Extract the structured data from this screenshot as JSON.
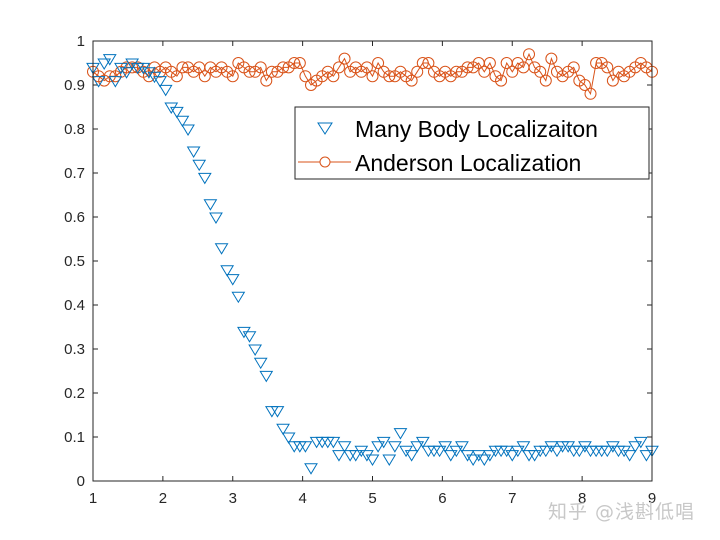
{
  "chart_data": {
    "type": "scatter",
    "title": "",
    "xlabel": "",
    "ylabel": "",
    "xlim": [
      1,
      9
    ],
    "ylim": [
      0,
      1
    ],
    "xticks": [
      1,
      2,
      3,
      4,
      5,
      6,
      7,
      8,
      9
    ],
    "yticks": [
      0,
      0.1,
      0.2,
      0.3,
      0.4,
      0.5,
      0.6,
      0.7,
      0.8,
      0.9,
      1
    ],
    "ytick_labels": [
      "0",
      "0.1",
      "0.2",
      "0.3",
      "0.4",
      "0.5",
      "0.6",
      "0.7",
      "0.8",
      "0.9",
      "1"
    ],
    "grid": false,
    "legend_position": "upper right (inside)",
    "series": [
      {
        "name": "Many Body Localizaiton",
        "marker": "triangle-down",
        "line": "none",
        "color": "#0072BD",
        "x": [
          1.0,
          1.08,
          1.16,
          1.24,
          1.32,
          1.4,
          1.48,
          1.56,
          1.64,
          1.72,
          1.8,
          1.88,
          1.96,
          2.04,
          2.12,
          2.2,
          2.28,
          2.36,
          2.44,
          2.52,
          2.6,
          2.68,
          2.76,
          2.84,
          2.92,
          3.0,
          3.08,
          3.16,
          3.24,
          3.32,
          3.4,
          3.48,
          3.56,
          3.64,
          3.72,
          3.8,
          3.88,
          3.96,
          4.04,
          4.12,
          4.2,
          4.28,
          4.36,
          4.44,
          4.52,
          4.6,
          4.68,
          4.76,
          4.84,
          4.92,
          5.0,
          5.08,
          5.16,
          5.24,
          5.32,
          5.4,
          5.48,
          5.56,
          5.64,
          5.72,
          5.8,
          5.88,
          5.96,
          6.04,
          6.12,
          6.2,
          6.28,
          6.36,
          6.44,
          6.52,
          6.6,
          6.68,
          6.76,
          6.84,
          6.92,
          7.0,
          7.08,
          7.16,
          7.24,
          7.32,
          7.4,
          7.48,
          7.56,
          7.64,
          7.72,
          7.8,
          7.88,
          7.96,
          8.04,
          8.12,
          8.2,
          8.28,
          8.36,
          8.44,
          8.52,
          8.6,
          8.68,
          8.76,
          8.84,
          8.92,
          9.0
        ],
        "y": [
          0.94,
          0.91,
          0.95,
          0.96,
          0.91,
          0.94,
          0.93,
          0.95,
          0.94,
          0.94,
          0.93,
          0.92,
          0.91,
          0.89,
          0.85,
          0.84,
          0.82,
          0.8,
          0.75,
          0.72,
          0.69,
          0.63,
          0.6,
          0.53,
          0.48,
          0.46,
          0.42,
          0.34,
          0.33,
          0.3,
          0.27,
          0.24,
          0.16,
          0.16,
          0.12,
          0.1,
          0.08,
          0.08,
          0.08,
          0.03,
          0.09,
          0.09,
          0.09,
          0.09,
          0.06,
          0.08,
          0.06,
          0.06,
          0.07,
          0.06,
          0.05,
          0.08,
          0.09,
          0.05,
          0.08,
          0.11,
          0.07,
          0.06,
          0.08,
          0.09,
          0.07,
          0.07,
          0.07,
          0.08,
          0.06,
          0.07,
          0.08,
          0.06,
          0.05,
          0.06,
          0.05,
          0.06,
          0.07,
          0.07,
          0.07,
          0.06,
          0.07,
          0.08,
          0.06,
          0.06,
          0.07,
          0.07,
          0.08,
          0.07,
          0.08,
          0.08,
          0.07,
          0.07,
          0.08,
          0.07,
          0.07,
          0.07,
          0.07,
          0.08,
          0.07,
          0.07,
          0.06,
          0.08,
          0.09,
          0.06,
          0.07
        ]
      },
      {
        "name": "Anderson Localization",
        "marker": "circle",
        "line": "solid",
        "color": "#D95319",
        "x": [
          1.0,
          1.08,
          1.16,
          1.24,
          1.32,
          1.4,
          1.48,
          1.56,
          1.64,
          1.72,
          1.8,
          1.88,
          1.96,
          2.04,
          2.12,
          2.2,
          2.28,
          2.36,
          2.44,
          2.52,
          2.6,
          2.68,
          2.76,
          2.84,
          2.92,
          3.0,
          3.08,
          3.16,
          3.24,
          3.32,
          3.4,
          3.48,
          3.56,
          3.64,
          3.72,
          3.8,
          3.88,
          3.96,
          4.04,
          4.12,
          4.2,
          4.28,
          4.36,
          4.44,
          4.52,
          4.6,
          4.68,
          4.76,
          4.84,
          4.92,
          5.0,
          5.08,
          5.16,
          5.24,
          5.32,
          5.4,
          5.48,
          5.56,
          5.64,
          5.72,
          5.8,
          5.88,
          5.96,
          6.04,
          6.12,
          6.2,
          6.28,
          6.36,
          6.44,
          6.52,
          6.6,
          6.68,
          6.76,
          6.84,
          6.92,
          7.0,
          7.08,
          7.16,
          7.24,
          7.32,
          7.4,
          7.48,
          7.56,
          7.64,
          7.72,
          7.8,
          7.88,
          7.96,
          8.04,
          8.12,
          8.2,
          8.28,
          8.36,
          8.44,
          8.52,
          8.6,
          8.68,
          8.76,
          8.84,
          8.92,
          9.0
        ],
        "y": [
          0.93,
          0.92,
          0.91,
          0.92,
          0.92,
          0.93,
          0.94,
          0.94,
          0.94,
          0.93,
          0.92,
          0.94,
          0.93,
          0.94,
          0.93,
          0.92,
          0.94,
          0.94,
          0.93,
          0.94,
          0.92,
          0.94,
          0.93,
          0.94,
          0.93,
          0.92,
          0.95,
          0.94,
          0.93,
          0.93,
          0.94,
          0.91,
          0.93,
          0.93,
          0.94,
          0.94,
          0.95,
          0.95,
          0.92,
          0.9,
          0.91,
          0.92,
          0.93,
          0.92,
          0.94,
          0.96,
          0.93,
          0.94,
          0.93,
          0.94,
          0.92,
          0.95,
          0.93,
          0.92,
          0.92,
          0.93,
          0.92,
          0.91,
          0.93,
          0.95,
          0.95,
          0.93,
          0.92,
          0.93,
          0.92,
          0.93,
          0.93,
          0.94,
          0.94,
          0.95,
          0.93,
          0.95,
          0.92,
          0.91,
          0.95,
          0.93,
          0.95,
          0.94,
          0.97,
          0.94,
          0.93,
          0.91,
          0.96,
          0.93,
          0.92,
          0.93,
          0.94,
          0.91,
          0.9,
          0.88,
          0.95,
          0.95,
          0.94,
          0.91,
          0.93,
          0.92,
          0.93,
          0.94,
          0.95,
          0.94,
          0.93
        ]
      }
    ]
  },
  "legend": {
    "items": [
      {
        "label": "Many Body Localizaiton"
      },
      {
        "label": "Anderson Localization"
      }
    ]
  },
  "watermark": {
    "text": "知乎 @浅斟低唱"
  }
}
